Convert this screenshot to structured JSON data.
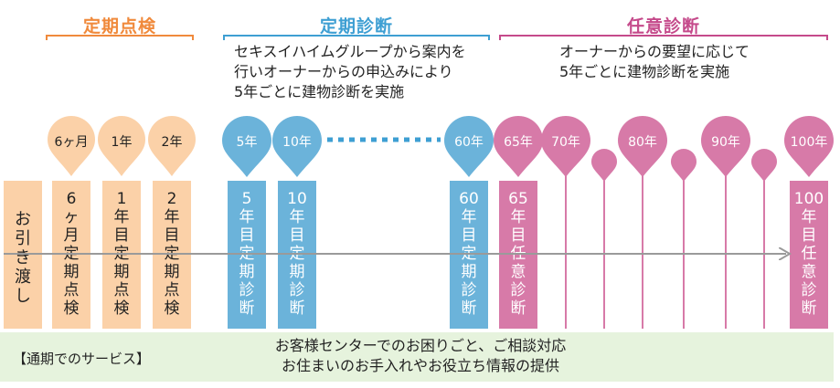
{
  "colors": {
    "orange": "#f08a3c",
    "orange_fill": "#fbd1a8",
    "blue": "#3e9fd3",
    "blue_fill": "#6bb3da",
    "pink": "#c54a8b",
    "pink_fill": "#d77aa8",
    "green_band": "#e6f3dd",
    "arrow": "#9a9a9a"
  },
  "sections": {
    "periodic_inspection": {
      "title": "定期点検"
    },
    "periodic_diagnosis": {
      "title": "定期診断",
      "desc_lines": [
        "セキスイハイムグループから案内を",
        "行いオーナーからの申込みにより",
        "5年ごとに建物診断を実施"
      ]
    },
    "optional_diagnosis": {
      "title": "任意診断",
      "desc_lines": [
        "オーナーからの要望に応じて",
        "5年ごとに建物診断を実施"
      ]
    }
  },
  "pins": {
    "m6": "6ヶ月",
    "y1": "1年",
    "y2": "2年",
    "y5": "5年",
    "y10": "10年",
    "y60": "60年",
    "y65": "65年",
    "y70": "70年",
    "y80": "80年",
    "y90": "90年",
    "y100": "100年"
  },
  "boxes": {
    "handover": [
      "お",
      "引",
      "き",
      "渡",
      "し"
    ],
    "m6": [
      "6",
      "ヶ",
      "月",
      "定",
      "期",
      "点",
      "検"
    ],
    "y1": [
      "1",
      "年",
      "目",
      "定",
      "期",
      "点",
      "検"
    ],
    "y2": [
      "2",
      "年",
      "目",
      "定",
      "期",
      "点",
      "検"
    ],
    "y5": [
      "5",
      "年",
      "目",
      "定",
      "期",
      "診",
      "断"
    ],
    "y10": [
      "10",
      "年",
      "目",
      "定",
      "期",
      "診",
      "断"
    ],
    "y60": [
      "60",
      "年",
      "目",
      "定",
      "期",
      "診",
      "断"
    ],
    "y65": [
      "65",
      "年",
      "目",
      "任",
      "意",
      "診",
      "断"
    ],
    "y100": [
      "100",
      "年",
      "目",
      "任",
      "意",
      "診",
      "断"
    ]
  },
  "service": {
    "label": "【通期でのサービス】",
    "line1": "お客様センターでのお困りごと、ご相談対応",
    "line2": "お住まいのお手入れやお役立ち情報の提供"
  }
}
